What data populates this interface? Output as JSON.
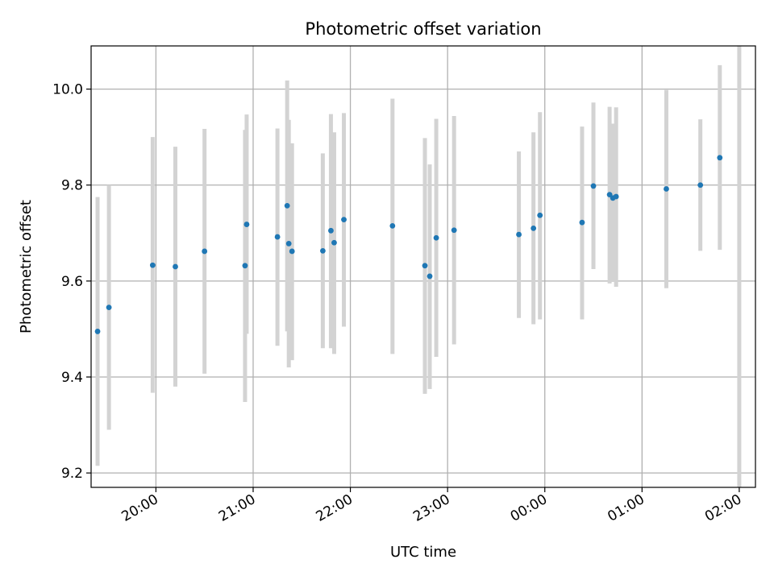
{
  "chart_data": {
    "type": "scatter",
    "title": "Photometric offset variation",
    "xlabel": "UTC time",
    "ylabel": "Photometric offset",
    "x_axis": {
      "kind": "time",
      "range": [
        "19:20",
        "02:10"
      ],
      "ticks": [
        "20:00",
        "21:00",
        "22:00",
        "23:00",
        "00:00",
        "01:00",
        "02:00"
      ]
    },
    "ylim": [
      9.17,
      10.09
    ],
    "yticks": [
      9.2,
      9.4,
      9.6,
      9.8,
      10.0
    ],
    "ytick_labels": [
      "9.2",
      "9.4",
      "9.6",
      "9.8",
      "10.0"
    ],
    "grid": true,
    "colors": {
      "marker": "#1f77b4",
      "error_bar": "#d3d3d3",
      "grid": "#b0b0b0",
      "axes": "#000000"
    },
    "points": [
      {
        "time": "19:24",
        "y": 9.495,
        "low": 9.215,
        "high": 9.775
      },
      {
        "time": "19:31",
        "y": 9.545,
        "low": 9.29,
        "high": 9.8
      },
      {
        "time": "19:58",
        "y": 9.633,
        "low": 9.367,
        "high": 9.9
      },
      {
        "time": "20:12",
        "y": 9.63,
        "low": 9.38,
        "high": 9.88
      },
      {
        "time": "20:30",
        "y": 9.662,
        "low": 9.407,
        "high": 9.917
      },
      {
        "time": "20:55",
        "y": 9.632,
        "low": 9.348,
        "high": 9.915
      },
      {
        "time": "20:56",
        "y": 9.718,
        "low": 9.49,
        "high": 9.947
      },
      {
        "time": "21:15",
        "y": 9.692,
        "low": 9.465,
        "high": 9.918
      },
      {
        "time": "21:21",
        "y": 9.757,
        "low": 9.495,
        "high": 10.018
      },
      {
        "time": "21:22",
        "y": 9.678,
        "low": 9.42,
        "high": 9.936
      },
      {
        "time": "21:24",
        "y": 9.662,
        "low": 9.435,
        "high": 9.887
      },
      {
        "time": "21:43",
        "y": 9.663,
        "low": 9.46,
        "high": 9.866
      },
      {
        "time": "21:48",
        "y": 9.705,
        "low": 9.46,
        "high": 9.948
      },
      {
        "time": "21:50",
        "y": 9.68,
        "low": 9.448,
        "high": 9.91
      },
      {
        "time": "21:56",
        "y": 9.728,
        "low": 9.505,
        "high": 9.95
      },
      {
        "time": "22:26",
        "y": 9.715,
        "low": 9.448,
        "high": 9.98
      },
      {
        "time": "22:46",
        "y": 9.632,
        "low": 9.365,
        "high": 9.898
      },
      {
        "time": "22:49",
        "y": 9.61,
        "low": 9.375,
        "high": 9.843
      },
      {
        "time": "22:53",
        "y": 9.69,
        "low": 9.442,
        "high": 9.938
      },
      {
        "time": "23:04",
        "y": 9.706,
        "low": 9.468,
        "high": 9.944
      },
      {
        "time": "23:44",
        "y": 9.697,
        "low": 9.523,
        "high": 9.87
      },
      {
        "time": "23:53",
        "y": 9.71,
        "low": 9.51,
        "high": 9.91
      },
      {
        "time": "23:57",
        "y": 9.737,
        "low": 9.52,
        "high": 9.952
      },
      {
        "time": "00:23",
        "y": 9.722,
        "low": 9.52,
        "high": 9.922
      },
      {
        "time": "00:30",
        "y": 9.798,
        "low": 9.625,
        "high": 9.972
      },
      {
        "time": "00:40",
        "y": 9.78,
        "low": 9.595,
        "high": 9.963
      },
      {
        "time": "00:42",
        "y": 9.773,
        "low": 9.598,
        "high": 9.928
      },
      {
        "time": "00:44",
        "y": 9.776,
        "low": 9.588,
        "high": 9.962
      },
      {
        "time": "01:15",
        "y": 9.792,
        "low": 9.585,
        "high": 9.998
      },
      {
        "time": "01:36",
        "y": 9.8,
        "low": 9.663,
        "high": 9.937
      },
      {
        "time": "01:48",
        "y": 9.857,
        "low": 9.665,
        "high": 10.05
      },
      {
        "time": "02:00",
        "y": null,
        "low": 9.17,
        "high": 10.09
      }
    ]
  }
}
